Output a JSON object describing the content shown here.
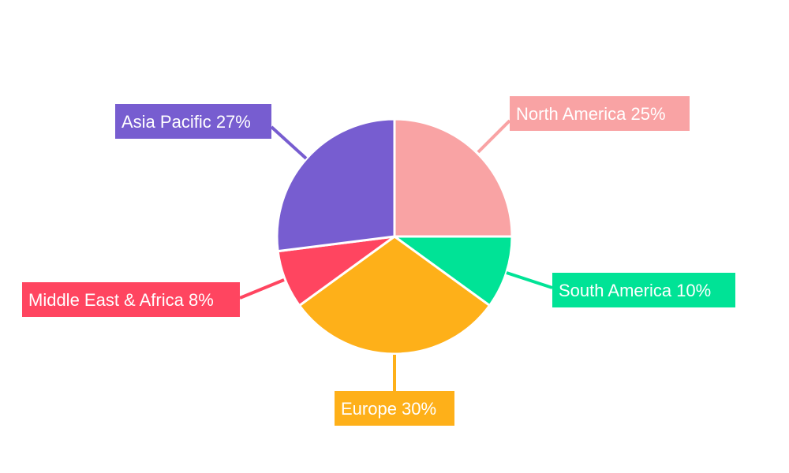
{
  "chart_data": {
    "type": "pie",
    "start_angle": "top, clockwise",
    "legend": "none",
    "slices": [
      {
        "label": "North America",
        "value": 25,
        "display": "North America 25%",
        "color": "#F9A3A4"
      },
      {
        "label": "South America",
        "value": 10,
        "display": "South America 10%",
        "color": "#00E396"
      },
      {
        "label": "Europe",
        "value": 30,
        "display": "Europe 30%",
        "color": "#FEB019"
      },
      {
        "label": "Middle East & Africa",
        "value": 8,
        "display": "Middle East & Africa 8%",
        "color": "#FF4560"
      },
      {
        "label": "Asia Pacific",
        "value": 27,
        "display": "Asia Pacific 27%",
        "color": "#775DD0"
      }
    ]
  }
}
